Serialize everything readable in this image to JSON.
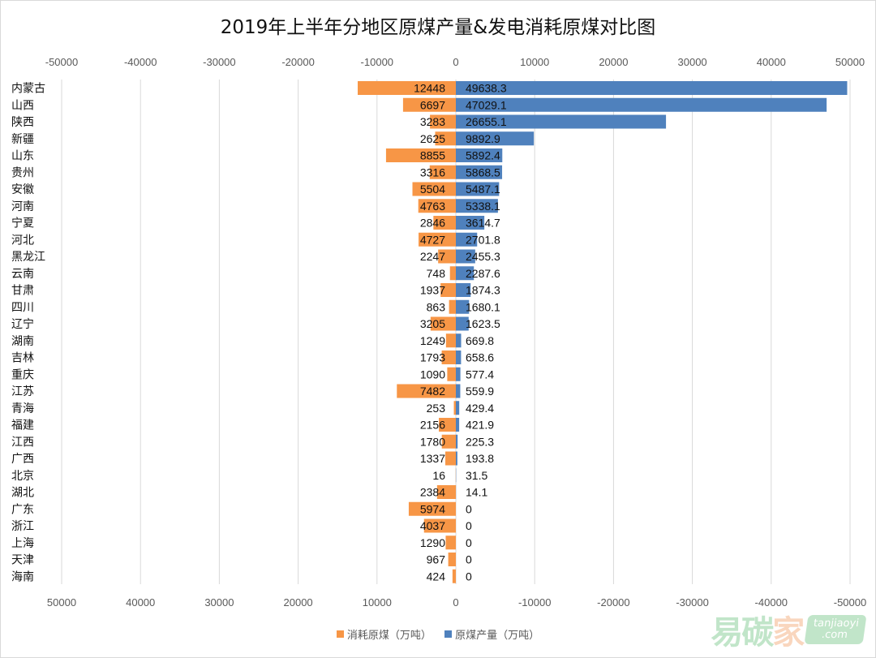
{
  "chart_data": {
    "type": "bar",
    "orientation": "horizontal",
    "title": "2019年上半年分地区原煤产量&发电消耗原煤对比图",
    "categories": [
      "内蒙古",
      "山西",
      "陕西",
      "新疆",
      "山东",
      "贵州",
      "安徽",
      "河南",
      "宁夏",
      "河北",
      "黑龙江",
      "云南",
      "甘肃",
      "四川",
      "辽宁",
      "湖南",
      "吉林",
      "重庆",
      "江苏",
      "青海",
      "福建",
      "江西",
      "广西",
      "北京",
      "湖北",
      "广东",
      "浙江",
      "上海",
      "天津",
      "海南"
    ],
    "series": [
      {
        "name": "消耗原煤（万吨）",
        "color": "#F79646",
        "direction": "left",
        "values": [
          12448,
          6697,
          3283,
          2625,
          8855,
          3316,
          5504,
          4763,
          2846,
          4727,
          2247,
          748,
          1937,
          863,
          3205,
          1249,
          1793,
          1090,
          7482,
          253,
          2156,
          1780,
          1337,
          16,
          2384,
          5974,
          4037,
          1290,
          967,
          424
        ]
      },
      {
        "name": "原煤产量（万吨）",
        "color": "#4F81BD",
        "direction": "right",
        "values": [
          49638.3,
          47029.1,
          26655.1,
          9892.9,
          5892.4,
          5868.5,
          5487.1,
          5338.1,
          3614.7,
          2701.8,
          2455.3,
          2287.6,
          1874.3,
          1680.1,
          1623.5,
          669.8,
          658.6,
          577.4,
          559.9,
          429.4,
          421.9,
          225.3,
          193.8,
          31.5,
          14.1,
          0,
          0,
          0,
          0,
          0
        ]
      }
    ],
    "top_axis_ticks": [
      "-50000",
      "-40000",
      "-30000",
      "-20000",
      "-10000",
      "0",
      "10000",
      "20000",
      "30000",
      "40000",
      "50000"
    ],
    "bottom_axis_ticks": [
      "50000",
      "40000",
      "30000",
      "20000",
      "10000",
      "0",
      "-10000",
      "-20000",
      "-30000",
      "-40000",
      "-50000"
    ],
    "xlim": [
      -50000,
      50000
    ],
    "grid": "vertical",
    "legend_position": "bottom"
  },
  "logo": {
    "text": "易碳家",
    "domain": "tanjiaoyi",
    "tld": ".com"
  }
}
